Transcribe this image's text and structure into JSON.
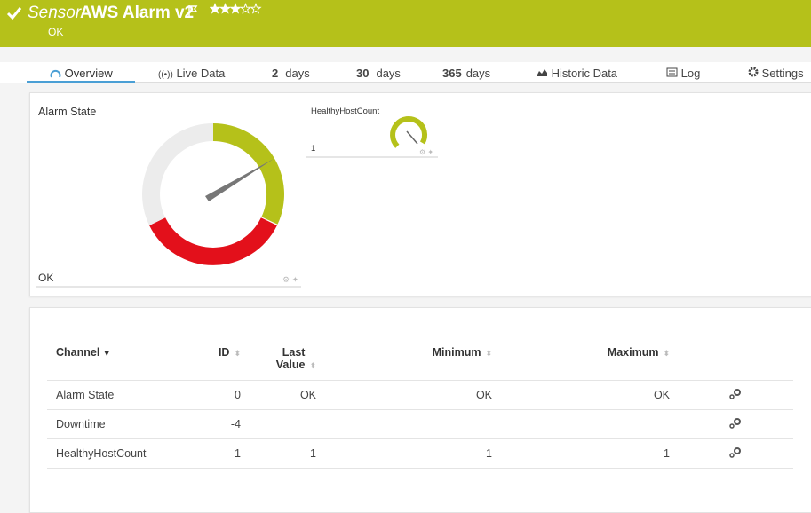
{
  "header": {
    "kind": "Sensor",
    "name": "AWS Alarm v2",
    "status": "OK",
    "priority": 3
  },
  "tabs": [
    {
      "label": "Overview"
    },
    {
      "label": "Live Data"
    },
    {
      "number": 2,
      "label": "days"
    },
    {
      "number": 30,
      "label": "days"
    },
    {
      "number": 365,
      "label": "days"
    },
    {
      "label": "Historic Data"
    },
    {
      "label": "Log"
    },
    {
      "label": "Settings"
    }
  ],
  "gauges": [
    {
      "title": "Alarm State",
      "value": "OK"
    },
    {
      "title": "HealthyHostCount",
      "value": 1
    }
  ],
  "table": {
    "columns": [
      "Channel",
      "ID",
      "Last Value",
      "Minimum",
      "Maximum"
    ],
    "rows": [
      {
        "channel": "Alarm State",
        "id": 0,
        "last": "OK",
        "min": "OK",
        "max": "OK"
      },
      {
        "channel": "Downtime",
        "id": -4
      },
      {
        "channel": "HealthyHostCount",
        "id": 1,
        "last": 1,
        "min": 1,
        "max": 1
      }
    ]
  }
}
